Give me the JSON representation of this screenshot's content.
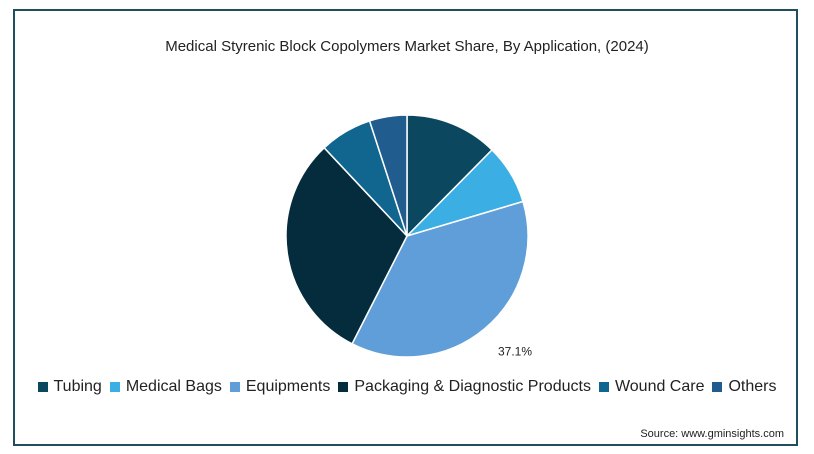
{
  "chart_data": {
    "type": "pie",
    "title": "Medical Styrenic Block Copolymers Market Share, By Application, (2024)",
    "categories": [
      "Tubing",
      "Medical Bags",
      "Equipments",
      "Packaging & Diagnostic Products",
      "Wound Care",
      "Others"
    ],
    "values": [
      12.4,
      8.0,
      37.1,
      30.5,
      7.0,
      5.0
    ],
    "colors": [
      "#0b4860",
      "#3baee3",
      "#5f9ed8",
      "#052c3c",
      "#11668f",
      "#215c8e"
    ],
    "data_labels": [
      {
        "category": "Equipments",
        "text": "37.1%"
      }
    ],
    "legend_position": "bottom"
  },
  "source": "Source: www.gminsights.com"
}
